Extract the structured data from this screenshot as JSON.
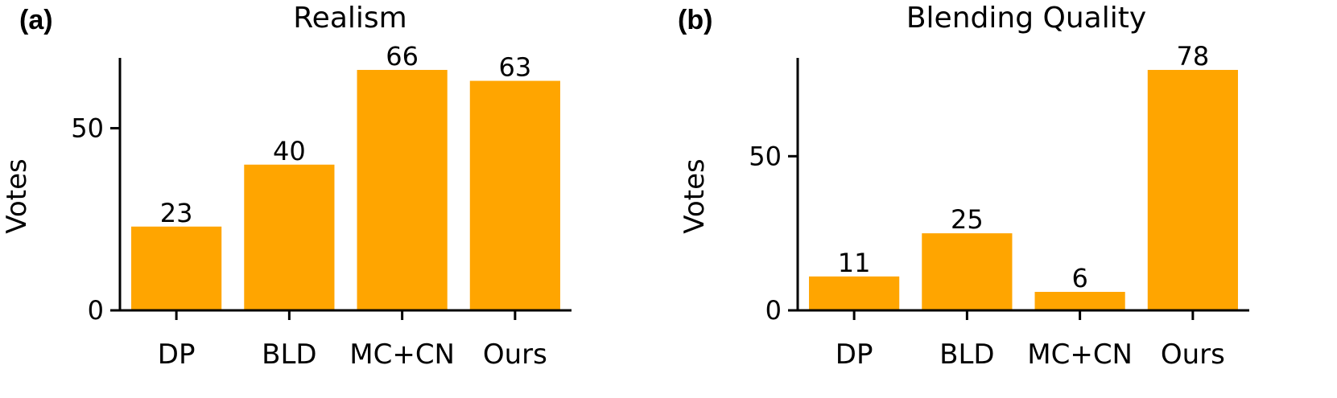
{
  "chart_data": [
    {
      "type": "bar",
      "panel_label": "(a)",
      "title": "Realism",
      "xlabel": "",
      "ylabel": "Votes",
      "categories": [
        "DP",
        "BLD",
        "MC+CN",
        "Ours"
      ],
      "values": [
        23,
        40,
        66,
        63
      ],
      "data_labels": [
        "23",
        "40",
        "66",
        "63"
      ],
      "yticks": [
        0,
        50
      ],
      "ytick_labels": [
        "0",
        "50"
      ],
      "ylim": [
        0,
        69.3
      ],
      "bar_color": "#FFA500",
      "grid": false,
      "legend": "none"
    },
    {
      "type": "bar",
      "panel_label": "(b)",
      "title": "Blending Quality",
      "xlabel": "",
      "ylabel": "Votes",
      "categories": [
        "DP",
        "BLD",
        "MC+CN",
        "Ours"
      ],
      "values": [
        11,
        25,
        6,
        78
      ],
      "data_labels": [
        "11",
        "25",
        "6",
        "78"
      ],
      "yticks": [
        0,
        50
      ],
      "ytick_labels": [
        "0",
        "50"
      ],
      "ylim": [
        0,
        81.9
      ],
      "bar_color": "#FFA500",
      "grid": false,
      "legend": "none"
    }
  ]
}
